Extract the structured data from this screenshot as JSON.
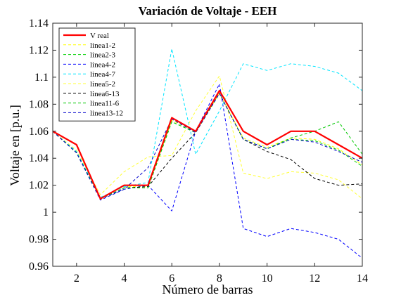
{
  "chart_data": {
    "type": "line",
    "title": "Variación de Voltaje - EEH",
    "xlabel": "Número de barras",
    "ylabel": "Voltaje en [p.u.]",
    "xlim": [
      1,
      14
    ],
    "ylim": [
      0.96,
      1.14
    ],
    "xticks": [
      2,
      4,
      6,
      8,
      10,
      12,
      14
    ],
    "yticks": [
      0.96,
      0.98,
      1,
      1.02,
      1.04,
      1.06,
      1.08,
      1.1,
      1.12,
      1.14
    ],
    "ytick_labels": [
      "0.96",
      "0.98",
      "1",
      "1.02",
      "1.04",
      "1.06",
      "1.08",
      "1.1",
      "1.12",
      "1.14"
    ],
    "grid": false,
    "legend_position": "top-left",
    "x": [
      1,
      2,
      3,
      4,
      5,
      6,
      7,
      8,
      9,
      10,
      11,
      12,
      13,
      14
    ],
    "series": [
      {
        "name": "V real",
        "color": "#ff0000",
        "dash": "solid",
        "width": 2.2,
        "values": [
          1.06,
          1.05,
          1.01,
          1.02,
          1.02,
          1.07,
          1.06,
          1.09,
          1.06,
          1.05,
          1.06,
          1.06,
          1.05,
          1.04
        ]
      },
      {
        "name": "linea1-2",
        "color": "#ffff00",
        "dash": "dashed",
        "width": 1,
        "values": [
          1.06,
          1.045,
          1.011,
          1.019,
          1.019,
          1.068,
          1.06,
          1.088,
          1.055,
          1.048,
          1.055,
          1.054,
          1.047,
          1.035
        ]
      },
      {
        "name": "linea2-3",
        "color": "#00d000",
        "dash": "dashed",
        "width": 1,
        "values": [
          1.06,
          1.044,
          1.01,
          1.018,
          1.018,
          1.067,
          1.059,
          1.088,
          1.054,
          1.047,
          1.054,
          1.053,
          1.046,
          1.034
        ]
      },
      {
        "name": "linea4-2",
        "color": "#0000ff",
        "dash": "dashed",
        "width": 1,
        "values": [
          1.06,
          1.044,
          1.01,
          1.017,
          1.02,
          1.001,
          1.06,
          1.095,
          0.988,
          0.982,
          0.988,
          0.985,
          0.98,
          0.966
        ]
      },
      {
        "name": "linea4-7",
        "color": "#00e5ff",
        "dash": "dashed",
        "width": 1,
        "values": [
          1.06,
          1.045,
          1.011,
          1.019,
          1.022,
          1.121,
          1.043,
          1.075,
          1.11,
          1.105,
          1.11,
          1.108,
          1.103,
          1.09
        ]
      },
      {
        "name": "linea5-2",
        "color": "#ffff33",
        "dash": "dashed",
        "width": 1,
        "values": [
          1.06,
          1.046,
          1.013,
          1.03,
          1.041,
          1.042,
          1.075,
          1.101,
          1.029,
          1.025,
          1.03,
          1.029,
          1.024,
          1.01
        ]
      },
      {
        "name": "linea6-13",
        "color": "#000000",
        "dash": "dashed",
        "width": 1,
        "values": [
          1.06,
          1.044,
          1.01,
          1.018,
          1.019,
          1.04,
          1.059,
          1.088,
          1.054,
          1.045,
          1.039,
          1.025,
          1.02,
          1.021
        ]
      },
      {
        "name": "linea11-6",
        "color": "#00c800",
        "dash": "dashed",
        "width": 1,
        "values": [
          1.06,
          1.044,
          1.01,
          1.018,
          1.018,
          1.067,
          1.059,
          1.088,
          1.054,
          1.047,
          1.055,
          1.06,
          1.067,
          1.043
        ]
      },
      {
        "name": "linea13-12",
        "color": "#0000cc",
        "dash": "dashed",
        "width": 1,
        "values": [
          1.06,
          1.044,
          1.009,
          1.017,
          1.033,
          1.069,
          1.059,
          1.088,
          1.054,
          1.047,
          1.054,
          1.052,
          1.045,
          1.037
        ]
      }
    ]
  }
}
